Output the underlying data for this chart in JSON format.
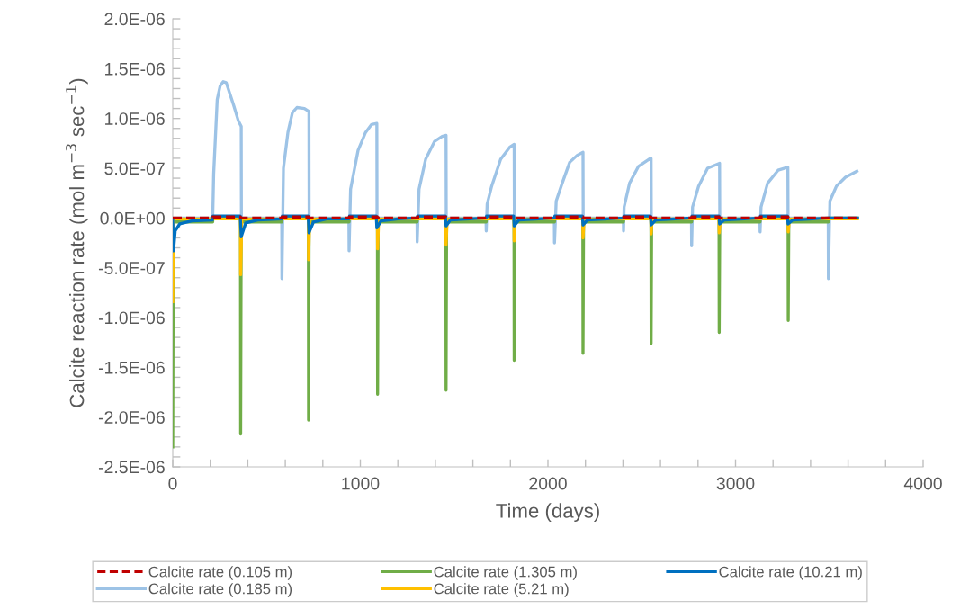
{
  "chart_data": {
    "type": "line",
    "xlabel": "Time (days)",
    "ylabel": "Calcite reaction rate (mol m$^{−3}$ sec$^{−1}$)",
    "xlim": [
      0,
      4000
    ],
    "xticks": [
      0,
      {
        "value": 200,
        "label": null
      },
      {
        "value": 400,
        "label": null
      },
      {
        "value": 600,
        "label": null
      },
      {
        "value": 800,
        "label": null
      },
      1000,
      {
        "value": 1200,
        "label": null
      },
      {
        "value": 1400,
        "label": null
      },
      {
        "value": 1600,
        "label": null
      },
      {
        "value": 1800,
        "label": null
      },
      2000,
      {
        "value": 2200,
        "label": null
      },
      {
        "value": 2400,
        "label": null
      },
      {
        "value": 2600,
        "label": null
      },
      {
        "value": 2800,
        "label": null
      },
      3000,
      {
        "value": 3200,
        "label": null
      },
      {
        "value": 3400,
        "label": null
      },
      {
        "value": 3600,
        "label": null
      },
      {
        "value": 3800,
        "label": null
      },
      4000
    ],
    "ylim": [
      -2.5e-06,
      2e-06
    ],
    "yticks": [
      {
        "value": -2.5e-06,
        "label": "-2.5E-06"
      },
      {
        "value": -2.4e-06,
        "label": null
      },
      {
        "value": -2.3e-06,
        "label": null
      },
      {
        "value": -2.2e-06,
        "label": null
      },
      {
        "value": -2.1e-06,
        "label": null
      },
      {
        "value": -2e-06,
        "label": "-2.0E-06"
      },
      {
        "value": -1.9e-06,
        "label": null
      },
      {
        "value": -1.8e-06,
        "label": null
      },
      {
        "value": -1.7e-06,
        "label": null
      },
      {
        "value": -1.6e-06,
        "label": null
      },
      {
        "value": -1.5e-06,
        "label": "-1.5E-06"
      },
      {
        "value": -1.4e-06,
        "label": null
      },
      {
        "value": -1.3e-06,
        "label": null
      },
      {
        "value": -1.2e-06,
        "label": null
      },
      {
        "value": -1.1e-06,
        "label": null
      },
      {
        "value": -1e-06,
        "label": "-1.0E-06"
      },
      {
        "value": -9e-07,
        "label": null
      },
      {
        "value": -8e-07,
        "label": null
      },
      {
        "value": -7e-07,
        "label": null
      },
      {
        "value": -6e-07,
        "label": null
      },
      {
        "value": -5e-07,
        "label": "-5.0E-07"
      },
      {
        "value": -4e-07,
        "label": null
      },
      {
        "value": -3e-07,
        "label": null
      },
      {
        "value": -2e-07,
        "label": null
      },
      {
        "value": -1e-07,
        "label": null
      },
      {
        "value": 0,
        "label": "0.0E+00"
      },
      {
        "value": 1e-07,
        "label": null
      },
      {
        "value": 2e-07,
        "label": null
      },
      {
        "value": 3e-07,
        "label": null
      },
      {
        "value": 4e-07,
        "label": null
      },
      {
        "value": 5e-07,
        "label": "5.0E-07"
      },
      {
        "value": 6e-07,
        "label": null
      },
      {
        "value": 7e-07,
        "label": null
      },
      {
        "value": 8e-07,
        "label": null
      },
      {
        "value": 9e-07,
        "label": null
      },
      {
        "value": 1e-06,
        "label": "1.0E-06"
      },
      {
        "value": 1.1e-06,
        "label": null
      },
      {
        "value": 1.2e-06,
        "label": null
      },
      {
        "value": 1.3e-06,
        "label": null
      },
      {
        "value": 1.4e-06,
        "label": null
      },
      {
        "value": 1.5e-06,
        "label": "1.5E-06"
      },
      {
        "value": 1.6e-06,
        "label": null
      },
      {
        "value": 1.7e-06,
        "label": null
      },
      {
        "value": 1.8e-06,
        "label": null
      },
      {
        "value": 1.9e-06,
        "label": null
      },
      {
        "value": 2e-06,
        "label": "2.0E-06"
      }
    ],
    "grid": false,
    "legend": "bottom",
    "marker": "none",
    "series": [
      {
        "name": "Calcite rate (0.105 m)",
        "color": "#c00000",
        "line_style": "dashed",
        "x": [
          0,
          213,
          214,
          361,
          363,
          582,
          583,
          723,
          725,
          940,
          941,
          1091,
          1093,
          1303,
          1304,
          1456,
          1458,
          1671,
          1672,
          1819,
          1821,
          2035,
          2036,
          2186,
          2188,
          2403,
          2404,
          2549,
          2551,
          2766,
          2767,
          2912,
          2914,
          3131,
          3132,
          3280,
          3282,
          3650
        ],
        "values": [
          0,
          0,
          1e-08,
          1e-08,
          0,
          0,
          1e-08,
          1e-08,
          0,
          0,
          1e-08,
          1e-08,
          0,
          0,
          1e-08,
          1e-08,
          0,
          0,
          1e-08,
          1e-08,
          0,
          0,
          1e-08,
          1e-08,
          0,
          0,
          1e-08,
          1e-08,
          0,
          0,
          1e-08,
          1e-08,
          0,
          0,
          1e-08,
          1e-08,
          0,
          0
        ]
      },
      {
        "name": "Calcite rate (0.185 m)",
        "color": "#9dc3e6",
        "line_style": "solid",
        "x": [
          0,
          213,
          218,
          237,
          253,
          269,
          285,
          325,
          349,
          365,
          366,
          581,
          582,
          590,
          614,
          638,
          662,
          702,
          726,
          727,
          939,
          940,
          948,
          988,
          1028,
          1060,
          1088,
          1089,
          1302,
          1303,
          1313,
          1348,
          1396,
          1436,
          1457,
          1458,
          1670,
          1671,
          1676,
          1700,
          1748,
          1796,
          1820,
          1821,
          2034,
          2035,
          2044,
          2076,
          2116,
          2156,
          2187,
          2188,
          2402,
          2403,
          2406,
          2435,
          2483,
          2547,
          2550,
          2551,
          2765,
          2766,
          2771,
          2803,
          2851,
          2915,
          2916,
          3130,
          3131,
          3136,
          3171,
          3227,
          3279,
          3280,
          3494,
          3495,
          3503,
          3538,
          3586,
          3647
        ],
        "values": [
          0,
          0,
          4.4e-07,
          1.19e-06,
          1.33e-06,
          1.37e-06,
          1.36e-06,
          1.13e-06,
          9.8e-07,
          9.2e-07,
          0,
          0,
          -6.1e-07,
          5e-07,
          8.6e-07,
          1.06e-06,
          1.11e-06,
          1.1e-06,
          1.07e-06,
          0,
          0,
          -3.3e-07,
          2.9e-07,
          6.8e-07,
          8.6e-07,
          9.4e-07,
          9.5e-07,
          0,
          0,
          -2.4e-07,
          2.9e-07,
          5.9e-07,
          7.7e-07,
          8.2e-07,
          8.3e-07,
          0,
          0,
          -1.3e-07,
          1.4e-07,
          3.2e-07,
          5.9e-07,
          7.1e-07,
          7.4e-07,
          0,
          0,
          -2.5e-07,
          1.7e-07,
          3.5e-07,
          5.6e-07,
          6.3e-07,
          6.6e-07,
          0,
          0,
          -1.3e-07,
          1.1e-07,
          3.5e-07,
          5.2e-07,
          6e-07,
          6e-07,
          0,
          0,
          -2.8e-07,
          1.1e-07,
          3.2e-07,
          5e-07,
          5.5e-07,
          0,
          0,
          -1.4e-07,
          1.1e-07,
          3.5e-07,
          4.8e-07,
          5.1e-07,
          0,
          0,
          -6.1e-07,
          1.7e-07,
          3.2e-07,
          4.1e-07,
          4.7e-07
        ]
      },
      {
        "name": "Calcite rate (1.305 m)",
        "color": "#70ad47",
        "line_style": "solid",
        "x": [
          0,
          3,
          213,
          214,
          361,
          362,
          365,
          582,
          583,
          723,
          724,
          727,
          940,
          941,
          1091,
          1092,
          1095,
          1303,
          1304,
          1456,
          1457,
          1460,
          1671,
          1672,
          1819,
          1820,
          1823,
          2035,
          2036,
          2186,
          2187,
          2190,
          2403,
          2404,
          2549,
          2550,
          2553,
          2766,
          2767,
          2912,
          2913,
          2916,
          3131,
          3132,
          3280,
          3281,
          3284,
          3495,
          3496,
          3650
        ],
        "values": [
          -2.3e-06,
          -4e-08,
          -4e-08,
          0,
          0,
          -2.17e-06,
          -4e-08,
          -4e-08,
          0,
          0,
          -2.03e-06,
          -4e-08,
          -4e-08,
          0,
          0,
          -1.77e-06,
          -4e-08,
          -4e-08,
          0,
          0,
          -1.73e-06,
          -4e-08,
          -4e-08,
          0,
          0,
          -1.43e-06,
          -4e-08,
          -4e-08,
          0,
          0,
          -1.36e-06,
          -4e-08,
          -4e-08,
          0,
          0,
          -1.26e-06,
          -4e-08,
          -4e-08,
          0,
          0,
          -1.15e-06,
          -4e-08,
          -4e-08,
          0,
          0,
          -1.03e-06,
          -4e-08,
          -4e-08,
          0,
          0
        ]
      },
      {
        "name": "Calcite rate (5.21 m)",
        "color": "#ffc000",
        "line_style": "solid",
        "x": [
          0,
          3,
          361,
          362,
          368,
          723,
          724,
          730,
          1091,
          1092,
          1098,
          1456,
          1457,
          1463,
          1819,
          1820,
          1826,
          2186,
          2187,
          2193,
          2549,
          2550,
          2556,
          2912,
          2913,
          2919,
          3280,
          3281,
          3287,
          3650
        ],
        "values": [
          -8.4e-07,
          -1e-08,
          -1e-08,
          -5.7e-07,
          -1e-08,
          -1e-08,
          -4.2e-07,
          -1e-08,
          -1e-08,
          -3.1e-07,
          -1e-08,
          -1e-08,
          -2.7e-07,
          -1e-08,
          -1e-08,
          -2.3e-07,
          -1e-08,
          -1e-08,
          -2e-07,
          -1e-08,
          -1e-08,
          -1.6e-07,
          -1e-08,
          -1e-08,
          -1.5e-07,
          -1e-08,
          -1e-08,
          -1.4e-07,
          -1e-08,
          -1e-08
        ]
      },
      {
        "name": "Calcite rate (10.21 m)",
        "color": "#0070c0",
        "line_style": "solid",
        "x": [
          0,
          4,
          13,
          37,
          101,
          212,
          214,
          360,
          365,
          389,
          453,
          582,
          584,
          722,
          726,
          750,
          820,
          940,
          942,
          1085,
          1088,
          1110,
          1200,
          1303,
          1305,
          1454,
          1457,
          1480,
          1671,
          1673,
          1817,
          1820,
          1845,
          2035,
          2037,
          2184,
          2187,
          2210,
          2403,
          2405,
          2547,
          2550,
          2575,
          2766,
          2768,
          2912,
          2915,
          2940,
          3131,
          3133,
          3277,
          3280,
          3305,
          3495,
          3650
        ],
        "values": [
          -2e-08,
          -3.3e-07,
          -1.3e-07,
          -6e-08,
          -3e-08,
          -2e-08,
          2e-08,
          2e-08,
          -1.9e-07,
          -5e-08,
          -2e-08,
          -1e-08,
          2e-08,
          2e-08,
          -1.5e-07,
          -4e-08,
          -1e-08,
          -1e-08,
          2e-08,
          2e-08,
          -1e-07,
          -3e-08,
          -1e-08,
          0,
          2e-08,
          2e-08,
          -8e-08,
          -2e-08,
          0,
          2e-08,
          2e-08,
          -8e-08,
          -2e-08,
          0,
          2e-08,
          2e-08,
          -7e-08,
          -2e-08,
          0,
          2e-08,
          2e-08,
          -7e-08,
          -2e-08,
          0,
          2e-08,
          2e-08,
          -6e-08,
          -2e-08,
          0,
          2e-08,
          2e-08,
          -6e-08,
          -2e-08,
          0,
          0
        ]
      }
    ]
  }
}
